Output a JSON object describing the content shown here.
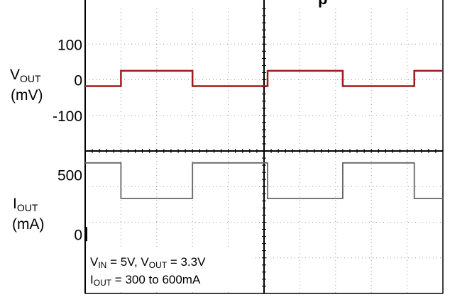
{
  "chart_data": {
    "type": "line",
    "panels": [
      {
        "id": "vout",
        "label_main": "V",
        "label_sub": "OUT",
        "unit": "(mV)",
        "ylim": [
          -200,
          200
        ],
        "yticks": [
          {
            "value": 100,
            "label": "100"
          },
          {
            "value": 0,
            "label": "0"
          },
          {
            "value": -100,
            "label": "-100"
          }
        ],
        "trace_color": "#9b1c1c",
        "series": {
          "name": "",
          "x": [
            0,
            1.0,
            1.0,
            3.0,
            3.0,
            5.1,
            5.1,
            7.2,
            7.2,
            9.2,
            9.2,
            10
          ],
          "values": [
            -18,
            -18,
            25,
            25,
            -18,
            -18,
            25,
            25,
            -18,
            -18,
            25,
            25
          ]
        }
      },
      {
        "id": "iout",
        "label_main": "I",
        "label_sub": "OUT",
        "unit": "(mA)",
        "ylim": [
          -500,
          700
        ],
        "yticks": [
          {
            "value": 500,
            "label": "500"
          },
          {
            "value": 0,
            "label": "0"
          }
        ],
        "trace_color": "#666666",
        "series": {
          "name": "",
          "x": [
            0,
            1.0,
            1.0,
            3.0,
            3.0,
            5.1,
            5.1,
            7.2,
            7.2,
            9.2,
            9.2,
            10
          ],
          "values": [
            600,
            600,
            300,
            300,
            600,
            600,
            300,
            300,
            600,
            600,
            300,
            300
          ]
        }
      }
    ],
    "xlim": [
      0,
      10
    ],
    "xdivisions": 10,
    "grid": true
  },
  "annotations": {
    "line1": {
      "v": "V",
      "in": "IN",
      "mid": " = 5V, V",
      "out": "OUT",
      "end": " = 3.3V"
    },
    "line2": {
      "i": "I",
      "out": "OUT",
      "end": " = 300 to 600mA"
    }
  },
  "title_fragment": "p"
}
